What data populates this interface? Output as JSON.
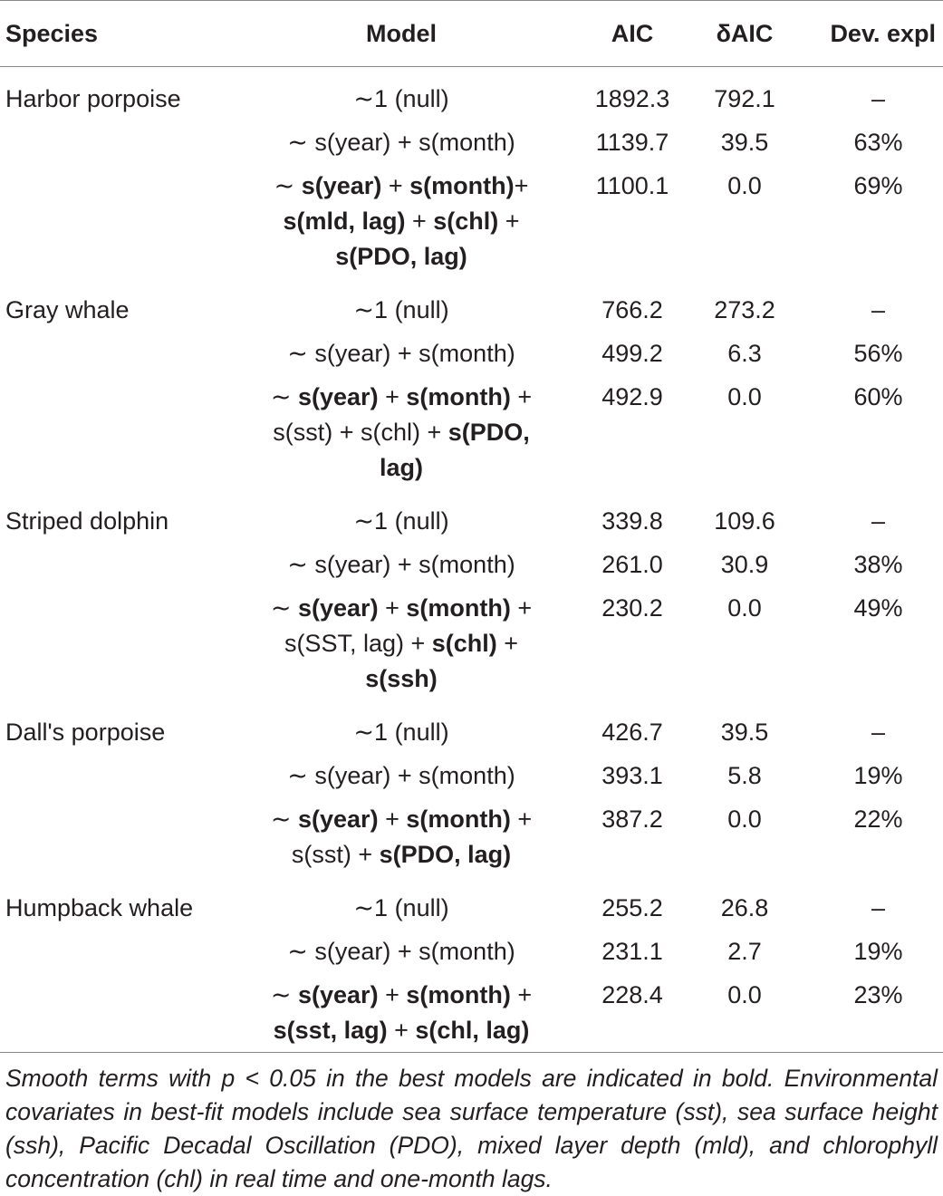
{
  "table": {
    "headers": {
      "species": "Species",
      "model": "Model",
      "aic": "AIC",
      "daic": "δAIC",
      "dev": "Dev. expl"
    },
    "rows": [
      {
        "species": "Harbor porpoise",
        "model_parts": [
          {
            "t": "∼1 (null)",
            "b": false
          }
        ],
        "aic": "1892.3",
        "daic": "792.1",
        "dev": "–"
      },
      {
        "species": "",
        "model_parts": [
          {
            "t": "∼ s(year) + s(month)",
            "b": false
          }
        ],
        "aic": "1139.7",
        "daic": "39.5",
        "dev": "63%"
      },
      {
        "species": "",
        "model_parts": [
          {
            "t": "∼ ",
            "b": false
          },
          {
            "t": "s(year)",
            "b": true
          },
          {
            "t": " + ",
            "b": false
          },
          {
            "t": "s(month)",
            "b": true
          },
          {
            "t": "+ ",
            "b": false
          },
          {
            "t": "s(mld, lag)",
            "b": true
          },
          {
            "t": " + ",
            "b": false
          },
          {
            "t": "s(chl)",
            "b": true
          },
          {
            "t": " + ",
            "b": false
          },
          {
            "t": "s(PDO, lag)",
            "b": true
          }
        ],
        "aic": "1100.1",
        "daic": "0.0",
        "dev": "69%"
      },
      {
        "species": "Gray whale",
        "model_parts": [
          {
            "t": "∼1 (null)",
            "b": false
          }
        ],
        "aic": "766.2",
        "daic": "273.2",
        "dev": "–"
      },
      {
        "species": "",
        "model_parts": [
          {
            "t": "∼ s(year) + s(month)",
            "b": false
          }
        ],
        "aic": "499.2",
        "daic": "6.3",
        "dev": "56%"
      },
      {
        "species": "",
        "model_parts": [
          {
            "t": "∼ ",
            "b": false
          },
          {
            "t": "s(year)",
            "b": true
          },
          {
            "t": " + ",
            "b": false
          },
          {
            "t": "s(month)",
            "b": true
          },
          {
            "t": " + ",
            "b": false
          },
          {
            "t": "s(sst) + s(chl) + ",
            "b": false
          },
          {
            "t": "s(PDO, lag)",
            "b": true
          }
        ],
        "aic": "492.9",
        "daic": "0.0",
        "dev": "60%"
      },
      {
        "species": "Striped dolphin",
        "model_parts": [
          {
            "t": "∼1 (null)",
            "b": false
          }
        ],
        "aic": "339.8",
        "daic": "109.6",
        "dev": "–"
      },
      {
        "species": "",
        "model_parts": [
          {
            "t": "∼ s(year) + s(month)",
            "b": false
          }
        ],
        "aic": "261.0",
        "daic": "30.9",
        "dev": "38%"
      },
      {
        "species": "",
        "model_parts": [
          {
            "t": "∼ ",
            "b": false
          },
          {
            "t": "s(year)",
            "b": true
          },
          {
            "t": " + ",
            "b": false
          },
          {
            "t": "s(month)",
            "b": true
          },
          {
            "t": " + ",
            "b": false
          },
          {
            "t": "s(SST, lag) + ",
            "b": false
          },
          {
            "t": "s(chl)",
            "b": true
          },
          {
            "t": " + ",
            "b": false
          },
          {
            "t": "s(ssh)",
            "b": true
          }
        ],
        "aic": "230.2",
        "daic": "0.0",
        "dev": "49%"
      },
      {
        "species": "Dall's porpoise",
        "model_parts": [
          {
            "t": "∼1 (null)",
            "b": false
          }
        ],
        "aic": "426.7",
        "daic": "39.5",
        "dev": "–"
      },
      {
        "species": "",
        "model_parts": [
          {
            "t": "∼ s(year) + s(month)",
            "b": false
          }
        ],
        "aic": "393.1",
        "daic": "5.8",
        "dev": "19%"
      },
      {
        "species": "",
        "model_parts": [
          {
            "t": "∼ ",
            "b": false
          },
          {
            "t": "s(year)",
            "b": true
          },
          {
            "t": " + ",
            "b": false
          },
          {
            "t": "s(month)",
            "b": true
          },
          {
            "t": " + ",
            "b": false
          },
          {
            "t": "s(sst) + ",
            "b": false
          },
          {
            "t": "s(PDO, lag)",
            "b": true
          }
        ],
        "aic": "387.2",
        "daic": "0.0",
        "dev": "22%"
      },
      {
        "species": "Humpback whale",
        "model_parts": [
          {
            "t": "∼1 (null)",
            "b": false
          }
        ],
        "aic": "255.2",
        "daic": "26.8",
        "dev": "–"
      },
      {
        "species": "",
        "model_parts": [
          {
            "t": "∼ s(year) + s(month)",
            "b": false
          }
        ],
        "aic": "231.1",
        "daic": "2.7",
        "dev": "19%"
      },
      {
        "species": "",
        "model_parts": [
          {
            "t": "∼ ",
            "b": false
          },
          {
            "t": "s(year)",
            "b": true
          },
          {
            "t": " + ",
            "b": false
          },
          {
            "t": "s(month)",
            "b": true
          },
          {
            "t": " + ",
            "b": false
          },
          {
            "t": "s(sst, lag)",
            "b": true
          },
          {
            "t": " + ",
            "b": false
          },
          {
            "t": "s(chl, lag)",
            "b": true
          }
        ],
        "aic": "228.4",
        "daic": "0.0",
        "dev": "23%"
      }
    ]
  },
  "caption": "Smooth terms with p < 0.05 in the best models are indicated in bold. Environmental covariates in best-fit models include sea surface temperature (sst), sea surface height (ssh), Pacific Decadal Oscillation (PDO), mixed layer depth (mld), and chlorophyll concentration (chl) in real time and one-month lags."
}
